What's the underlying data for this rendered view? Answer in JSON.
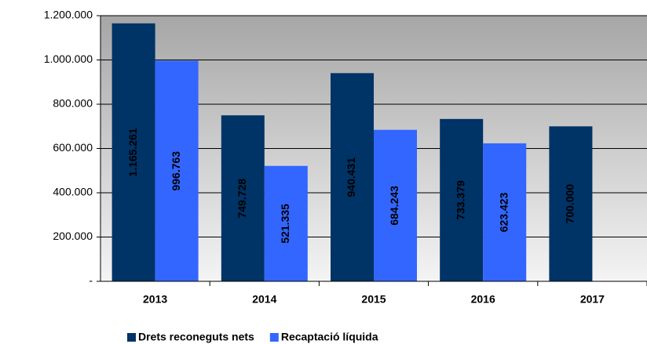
{
  "chart_data": {
    "type": "bar",
    "categories": [
      "2013",
      "2014",
      "2015",
      "2016",
      "2017"
    ],
    "series": [
      {
        "name": "Drets reconeguts nets",
        "color": "#003366",
        "values": [
          1165261,
          749728,
          940431,
          733379,
          700000
        ],
        "value_labels": [
          "1.165.261",
          "749.728",
          "940.431",
          "733.379",
          "700.000"
        ]
      },
      {
        "name": "Recaptació líquida",
        "color": "#3366ff",
        "values": [
          996763,
          521335,
          684243,
          623423,
          null
        ],
        "value_labels": [
          "996.763",
          "521.335",
          "684.243",
          "623.423",
          null
        ]
      }
    ],
    "ylim": [
      0,
      1200000
    ],
    "yticks": [
      {
        "value": 0,
        "label": "-"
      },
      {
        "value": 200000,
        "label": "200.000"
      },
      {
        "value": 400000,
        "label": "400.000"
      },
      {
        "value": 600000,
        "label": "600.000"
      },
      {
        "value": 800000,
        "label": "800.000"
      },
      {
        "value": 1000000,
        "label": "1.000.000"
      },
      {
        "value": 1200000,
        "label": "1.200.000"
      }
    ],
    "grid": true,
    "legend": "bottom"
  }
}
